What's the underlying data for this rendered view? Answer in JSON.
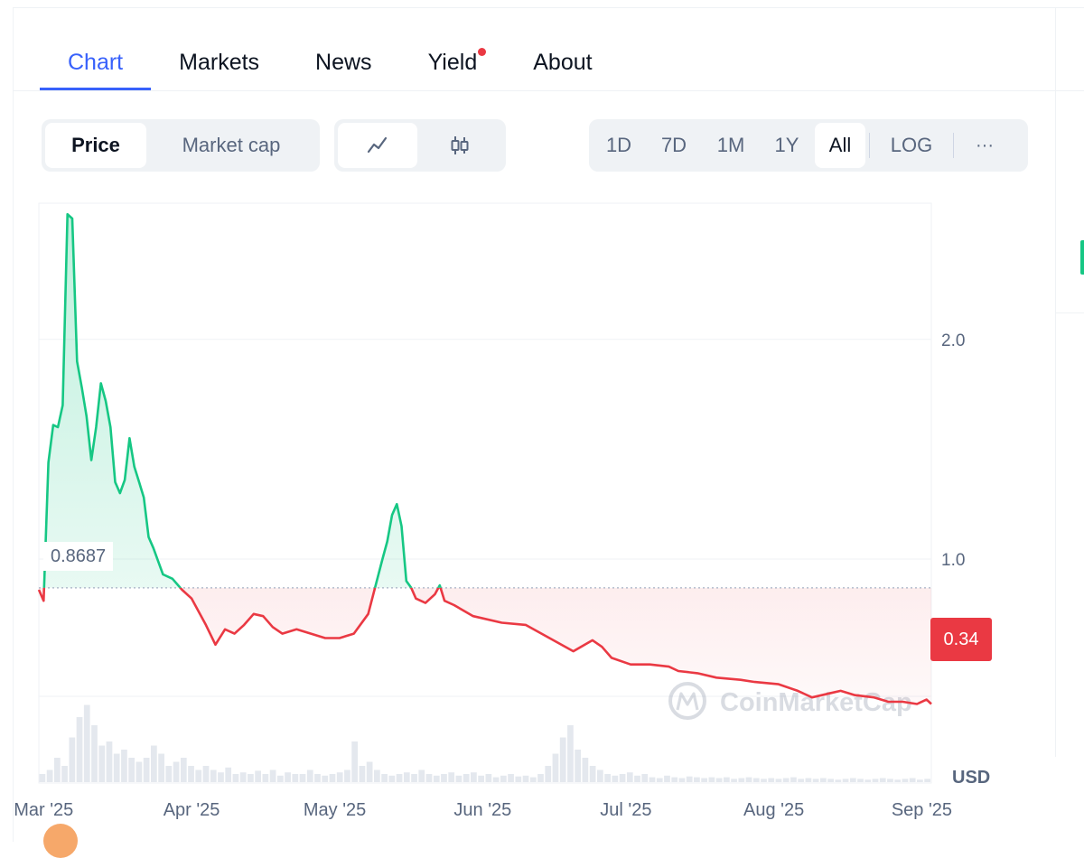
{
  "tabs": [
    {
      "label": "Chart",
      "active": true
    },
    {
      "label": "Markets"
    },
    {
      "label": "News"
    },
    {
      "label": "Yield",
      "dot": true
    },
    {
      "label": "About"
    }
  ],
  "toolbar": {
    "metric": [
      "Price",
      "Market cap"
    ],
    "metric_active": "Price",
    "chart_type_icons": [
      "line-chart-icon",
      "candlestick-icon"
    ],
    "ranges": [
      "1D",
      "7D",
      "1M",
      "1Y",
      "All"
    ],
    "range_active": "All",
    "log_label": "LOG",
    "more_label": "···"
  },
  "colors": {
    "up": "#16c784",
    "down": "#ea3943",
    "accent": "#3861fb"
  },
  "chart": {
    "reference_price": "0.8687",
    "current_price": "0.34",
    "unit": "USD",
    "watermark": "CoinMarketCap"
  },
  "chart_data": {
    "type": "area",
    "x_start": "2025-02-28",
    "x_end": "2025-09-03",
    "xtick_labels": [
      "Mar '25",
      "Apr '25",
      "May '25",
      "Jun '25",
      "Jul '25",
      "Aug '25",
      "Sep '25"
    ],
    "xtick_dates": [
      "2025-03-01",
      "2025-04-01",
      "2025-05-01",
      "2025-06-01",
      "2025-07-01",
      "2025-08-01",
      "2025-09-01"
    ],
    "yticks": [
      1.0,
      2.0
    ],
    "ylim": [
      -0.02,
      2.62
    ],
    "reference_value": 0.8687,
    "grid": true,
    "series": [
      {
        "x": [
          "2025-02-28",
          "2025-03-01",
          "2025-03-02",
          "2025-03-03",
          "2025-03-04",
          "2025-03-05",
          "2025-03-06",
          "2025-03-07",
          "2025-03-08",
          "2025-03-09",
          "2025-03-10",
          "2025-03-11",
          "2025-03-12",
          "2025-03-13",
          "2025-03-14",
          "2025-03-15",
          "2025-03-16",
          "2025-03-17",
          "2025-03-18",
          "2025-03-19",
          "2025-03-20",
          "2025-03-21",
          "2025-03-22",
          "2025-03-23",
          "2025-03-24",
          "2025-03-25",
          "2025-03-26",
          "2025-03-28",
          "2025-03-30",
          "2025-04-01",
          "2025-04-04",
          "2025-04-06",
          "2025-04-08",
          "2025-04-10",
          "2025-04-12",
          "2025-04-14",
          "2025-04-16",
          "2025-04-18",
          "2025-04-20",
          "2025-04-23",
          "2025-04-26",
          "2025-04-29",
          "2025-05-02",
          "2025-05-05",
          "2025-05-08",
          "2025-05-11",
          "2025-05-12",
          "2025-05-13",
          "2025-05-14",
          "2025-05-15",
          "2025-05-16",
          "2025-05-17",
          "2025-05-18",
          "2025-05-20",
          "2025-05-22",
          "2025-05-23",
          "2025-05-24",
          "2025-05-26",
          "2025-05-30",
          "2025-06-05",
          "2025-06-10",
          "2025-06-15",
          "2025-06-20",
          "2025-06-24",
          "2025-06-26",
          "2025-06-28",
          "2025-07-02",
          "2025-07-06",
          "2025-07-10",
          "2025-07-12",
          "2025-07-16",
          "2025-07-20",
          "2025-07-25",
          "2025-07-28",
          "2025-08-02",
          "2025-08-06",
          "2025-08-09",
          "2025-08-13",
          "2025-08-15",
          "2025-08-18",
          "2025-08-22",
          "2025-08-25",
          "2025-08-28",
          "2025-08-31",
          "2025-09-02",
          "2025-09-03"
        ],
        "values": [
          0.86,
          0.81,
          1.44,
          1.61,
          1.6,
          1.7,
          2.57,
          2.55,
          1.9,
          1.78,
          1.65,
          1.45,
          1.6,
          1.8,
          1.72,
          1.6,
          1.35,
          1.3,
          1.36,
          1.55,
          1.42,
          1.35,
          1.28,
          1.1,
          1.05,
          0.99,
          0.93,
          0.91,
          0.86,
          0.82,
          0.7,
          0.61,
          0.68,
          0.66,
          0.7,
          0.75,
          0.74,
          0.69,
          0.66,
          0.68,
          0.66,
          0.64,
          0.64,
          0.66,
          0.75,
          1.0,
          1.08,
          1.2,
          1.25,
          1.15,
          0.9,
          0.87,
          0.82,
          0.8,
          0.84,
          0.88,
          0.81,
          0.79,
          0.74,
          0.71,
          0.7,
          0.64,
          0.58,
          0.63,
          0.6,
          0.55,
          0.52,
          0.52,
          0.51,
          0.49,
          0.48,
          0.46,
          0.45,
          0.44,
          0.43,
          0.4,
          0.37,
          0.39,
          0.4,
          0.38,
          0.37,
          0.35,
          0.35,
          0.34,
          0.36,
          0.34
        ]
      }
    ],
    "volume_values": [
      0.1,
      0.15,
      0.3,
      0.2,
      0.55,
      0.8,
      0.95,
      0.7,
      0.45,
      0.5,
      0.35,
      0.4,
      0.3,
      0.25,
      0.3,
      0.45,
      0.35,
      0.2,
      0.25,
      0.3,
      0.2,
      0.15,
      0.2,
      0.15,
      0.12,
      0.18,
      0.1,
      0.12,
      0.1,
      0.14,
      0.1,
      0.15,
      0.08,
      0.12,
      0.1,
      0.1,
      0.15,
      0.1,
      0.08,
      0.1,
      0.12,
      0.15,
      0.5,
      0.2,
      0.25,
      0.15,
      0.1,
      0.08,
      0.1,
      0.12,
      0.1,
      0.15,
      0.1,
      0.08,
      0.1,
      0.12,
      0.08,
      0.1,
      0.12,
      0.08,
      0.1,
      0.06,
      0.08,
      0.1,
      0.07,
      0.08,
      0.06,
      0.1,
      0.2,
      0.35,
      0.55,
      0.7,
      0.4,
      0.3,
      0.2,
      0.15,
      0.1,
      0.08,
      0.1,
      0.12,
      0.08,
      0.1,
      0.06,
      0.05,
      0.08,
      0.06,
      0.05,
      0.07,
      0.06,
      0.05,
      0.06,
      0.05,
      0.06,
      0.04,
      0.05,
      0.06,
      0.05,
      0.04,
      0.05,
      0.04,
      0.05,
      0.06,
      0.04,
      0.05,
      0.04,
      0.05,
      0.04,
      0.03,
      0.04,
      0.05,
      0.04,
      0.03,
      0.04,
      0.05,
      0.04,
      0.03,
      0.04,
      0.05,
      0.03,
      0.04
    ]
  }
}
